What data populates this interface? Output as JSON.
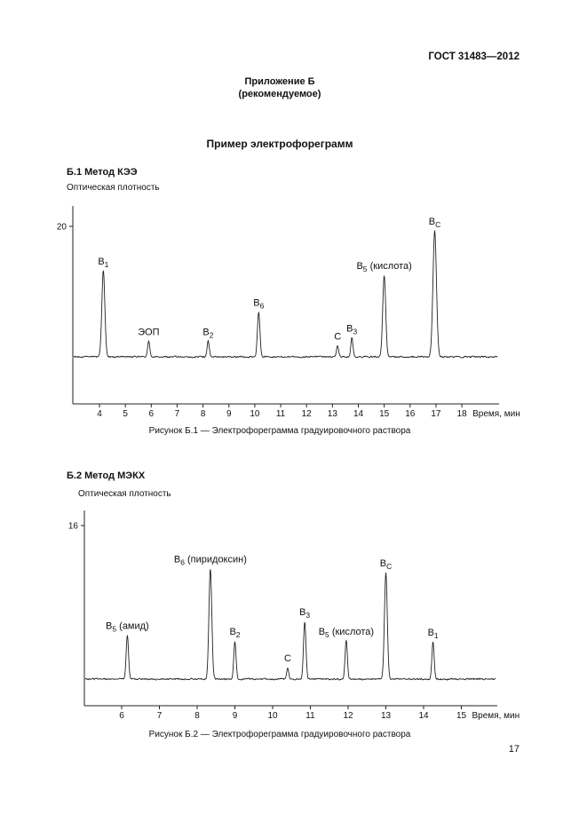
{
  "page": {
    "header": "ГОСТ 31483—2012",
    "appendix_line1": "Приложение Б",
    "appendix_line2": "(рекомендуемое)",
    "title": "Пример электрофореграмм",
    "page_number": "17"
  },
  "figure1": {
    "section_label": "Б.1  Метод КЭЭ",
    "caption": "Рисунок Б.1 — Электрофореграмма градуировочного раствора"
  },
  "figure2": {
    "section_label": "Б.2  Метод МЭКХ",
    "caption": "Рисунок Б.2 — Электрофореграмма градуировочного раствора"
  },
  "chart_data": [
    {
      "type": "line",
      "title": "Электрофореграмма градуировочного раствора (метод КЭЭ)",
      "ylabel": "Оптическая плотность",
      "xlabel": "Время, мин",
      "y_tick_labels": [
        "20"
      ],
      "y_tick_values": [
        20
      ],
      "x_ticks": [
        4,
        5,
        6,
        7,
        8,
        9,
        10,
        11,
        12,
        13,
        14,
        15,
        16,
        17,
        18
      ],
      "xlim": [
        3.0,
        19.4
      ],
      "ylim": [
        -2,
        27
      ],
      "baseline_value": 0,
      "grid": false,
      "legend": false,
      "peaks": [
        {
          "x": 4.15,
          "height": 13.2,
          "label_main": "В",
          "label_sub": "1",
          "label_rest": ""
        },
        {
          "x": 5.9,
          "height": 2.4,
          "label_main": "ЭОП",
          "label_sub": "",
          "label_rest": ""
        },
        {
          "x": 8.2,
          "height": 2.4,
          "label_main": "В",
          "label_sub": "2",
          "label_rest": ""
        },
        {
          "x": 10.15,
          "height": 6.9,
          "label_main": "В",
          "label_sub": "6",
          "label_rest": ""
        },
        {
          "x": 13.2,
          "height": 1.7,
          "label_main": "С",
          "label_sub": "",
          "label_rest": ""
        },
        {
          "x": 13.75,
          "height": 2.9,
          "label_main": "В",
          "label_sub": "3",
          "label_rest": ""
        },
        {
          "x": 15.0,
          "height": 12.5,
          "label_main": "В",
          "label_sub": "5",
          "label_rest": " (кислота)"
        },
        {
          "x": 16.95,
          "height": 19.3,
          "label_main": "В",
          "label_sub": "С",
          "label_rest": ""
        }
      ]
    },
    {
      "type": "line",
      "title": "Электрофореграмма градуировочного раствора (метод МЭКХ)",
      "ylabel": "Оптическая плотность",
      "xlabel": "Время, мин",
      "y_tick_labels": [
        "16"
      ],
      "y_tick_values": [
        16
      ],
      "x_ticks": [
        6,
        7,
        8,
        9,
        10,
        11,
        12,
        13,
        14,
        15
      ],
      "xlim": [
        5.0,
        16.0
      ],
      "ylim": [
        -2,
        18
      ],
      "baseline_value": 0,
      "grid": false,
      "legend": false,
      "peaks": [
        {
          "x": 6.15,
          "height": 4.6,
          "label_main": "В",
          "label_sub": "5",
          "label_rest": " (амид)"
        },
        {
          "x": 8.35,
          "height": 11.5,
          "label_main": "В",
          "label_sub": "6",
          "label_rest": " (пиридоксин)"
        },
        {
          "x": 9.0,
          "height": 4.0,
          "label_main": "В",
          "label_sub": "2",
          "label_rest": ""
        },
        {
          "x": 10.4,
          "height": 1.2,
          "label_main": "С",
          "label_sub": "",
          "label_rest": ""
        },
        {
          "x": 10.85,
          "height": 6.0,
          "label_main": "В",
          "label_sub": "3",
          "label_rest": ""
        },
        {
          "x": 11.95,
          "height": 4.0,
          "label_main": "В",
          "label_sub": "5",
          "label_rest": " (кислота)"
        },
        {
          "x": 13.0,
          "height": 11.1,
          "label_main": "В",
          "label_sub": "С",
          "label_rest": ""
        },
        {
          "x": 14.25,
          "height": 3.9,
          "label_main": "В",
          "label_sub": "1",
          "label_rest": ""
        }
      ]
    }
  ]
}
